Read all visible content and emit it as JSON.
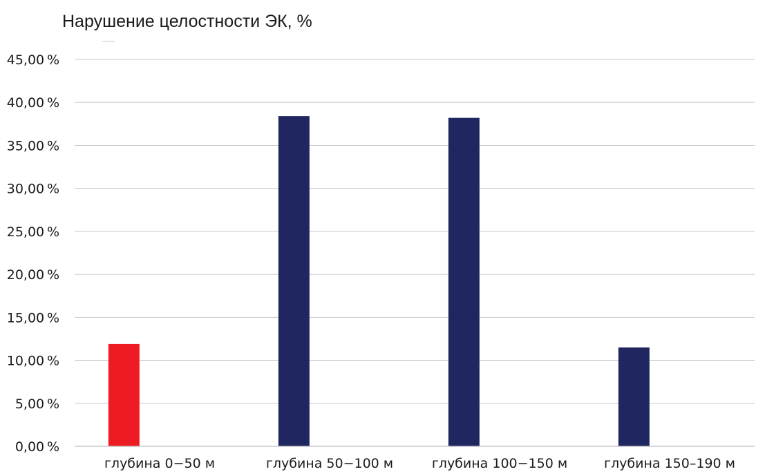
{
  "chart_data": {
    "type": "bar",
    "title": "Нарушение целостности ЭК, %",
    "xlabel": "",
    "ylabel": "",
    "categories": [
      "глубина 0−50 м",
      "глубина 50−100 м",
      "глубина 100−150 м",
      "глубина 150–190 м"
    ],
    "values": [
      11.9,
      38.4,
      38.2,
      11.5
    ],
    "bar_colors": [
      "#ed1c24",
      "#1f2660",
      "#1f2660",
      "#1f2660"
    ],
    "ylim": [
      0,
      45
    ],
    "yticks": [
      0,
      5,
      10,
      15,
      20,
      25,
      30,
      35,
      40,
      45
    ],
    "ytick_labels": [
      "0,00 %",
      "5,00 %",
      "10,00 %",
      "15,00 %",
      "20,00 %",
      "25,00 %",
      "30,00 %",
      "35,00 %",
      "40,00 %",
      "45,00 %"
    ],
    "grid": true,
    "legend": "none"
  }
}
